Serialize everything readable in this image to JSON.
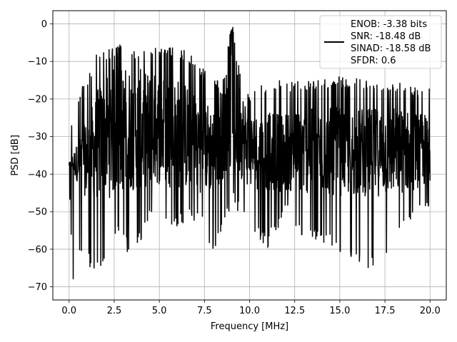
{
  "chart_data": {
    "type": "line",
    "xlabel": "Frequency [MHz]",
    "ylabel": "PSD [dB]",
    "xlim": [
      -0.9,
      20.9
    ],
    "ylim": [
      -73.5,
      3.5
    ],
    "xticks": [
      0.0,
      2.5,
      5.0,
      7.5,
      10.0,
      12.5,
      15.0,
      17.5,
      20.0
    ],
    "xtick_labels": [
      "0.0",
      "2.5",
      "5.0",
      "7.5",
      "10.0",
      "12.5",
      "15.0",
      "17.5",
      "20.0"
    ],
    "yticks": [
      0,
      -10,
      -20,
      -30,
      -40,
      -50,
      -60,
      -70
    ],
    "ytick_labels": [
      "0",
      "−10",
      "−20",
      "−30",
      "−40",
      "−50",
      "−60",
      "−70"
    ],
    "grid": true,
    "legend_position": "top-right",
    "series": [
      {
        "name": "ENOB: -3.38 bits\nSNR: -18.48 dB\nSINAD: -18.58 dB\nSFDR: 0.6",
        "color": "#000000",
        "style": "dense noisy PSD trace",
        "x_range": [
          0.0,
          20.0
        ],
        "envelope_upper": [
          [
            0.0,
            -28
          ],
          [
            0.3,
            -23
          ],
          [
            0.7,
            -16
          ],
          [
            1.0,
            -15
          ],
          [
            1.5,
            -7
          ],
          [
            2.5,
            -6
          ],
          [
            3.0,
            -5
          ],
          [
            3.5,
            -7
          ],
          [
            4.5,
            -6
          ],
          [
            5.5,
            -6
          ],
          [
            6.5,
            -7
          ],
          [
            7.5,
            -12
          ],
          [
            8.5,
            -16
          ],
          [
            8.9,
            -3
          ],
          [
            9.05,
            0
          ],
          [
            9.3,
            -9
          ],
          [
            10.0,
            -19
          ],
          [
            11.0,
            -15
          ],
          [
            12.0,
            -15
          ],
          [
            13.0,
            -15
          ],
          [
            15.0,
            -14
          ],
          [
            17.0,
            -15
          ],
          [
            18.0,
            -15
          ],
          [
            20.0,
            -17
          ]
        ],
        "envelope_lower": [
          [
            0.0,
            -45
          ],
          [
            0.2,
            -70
          ],
          [
            0.5,
            -62
          ],
          [
            1.0,
            -64
          ],
          [
            1.5,
            -68
          ],
          [
            2.5,
            -56
          ],
          [
            3.0,
            -58
          ],
          [
            3.5,
            -64
          ],
          [
            4.5,
            -52
          ],
          [
            5.5,
            -55
          ],
          [
            6.5,
            -53
          ],
          [
            7.5,
            -55
          ],
          [
            8.0,
            -62
          ],
          [
            9.0,
            -48
          ],
          [
            10.0,
            -55
          ],
          [
            11.0,
            -60
          ],
          [
            12.0,
            -51
          ],
          [
            13.0,
            -58
          ],
          [
            14.5,
            -59
          ],
          [
            15.5,
            -64
          ],
          [
            17.0,
            -66
          ],
          [
            18.0,
            -58
          ],
          [
            20.0,
            -50
          ]
        ],
        "band_lines_upper": [
          [
            0.0,
            -37
          ],
          [
            1.0,
            -25
          ],
          [
            2.0,
            -12
          ],
          [
            3.0,
            -11
          ],
          [
            4.0,
            -12
          ],
          [
            5.0,
            -13
          ],
          [
            6.0,
            -14
          ],
          [
            7.0,
            -17
          ],
          [
            8.0,
            -22
          ],
          [
            8.8,
            -10
          ],
          [
            9.05,
            -1
          ],
          [
            9.3,
            -12
          ],
          [
            10.0,
            -24
          ],
          [
            12.0,
            -23
          ],
          [
            15.0,
            -22
          ],
          [
            18.0,
            -22
          ],
          [
            20.0,
            -24
          ]
        ],
        "band_lines_lower": [
          [
            0.0,
            -38
          ],
          [
            1.0,
            -47
          ],
          [
            2.0,
            -47
          ],
          [
            3.0,
            -45
          ],
          [
            4.0,
            -44
          ],
          [
            5.0,
            -43
          ],
          [
            6.0,
            -44
          ],
          [
            7.0,
            -45
          ],
          [
            8.0,
            -45
          ],
          [
            9.0,
            -38
          ],
          [
            10.0,
            -44
          ],
          [
            12.0,
            -45
          ],
          [
            15.0,
            -46
          ],
          [
            18.0,
            -46
          ],
          [
            20.0,
            -43
          ]
        ]
      }
    ]
  },
  "legend": {
    "lines": [
      "ENOB: -3.38 bits",
      "SNR: -18.48 dB",
      "SINAD: -18.58 dB",
      "SFDR: 0.6"
    ]
  }
}
